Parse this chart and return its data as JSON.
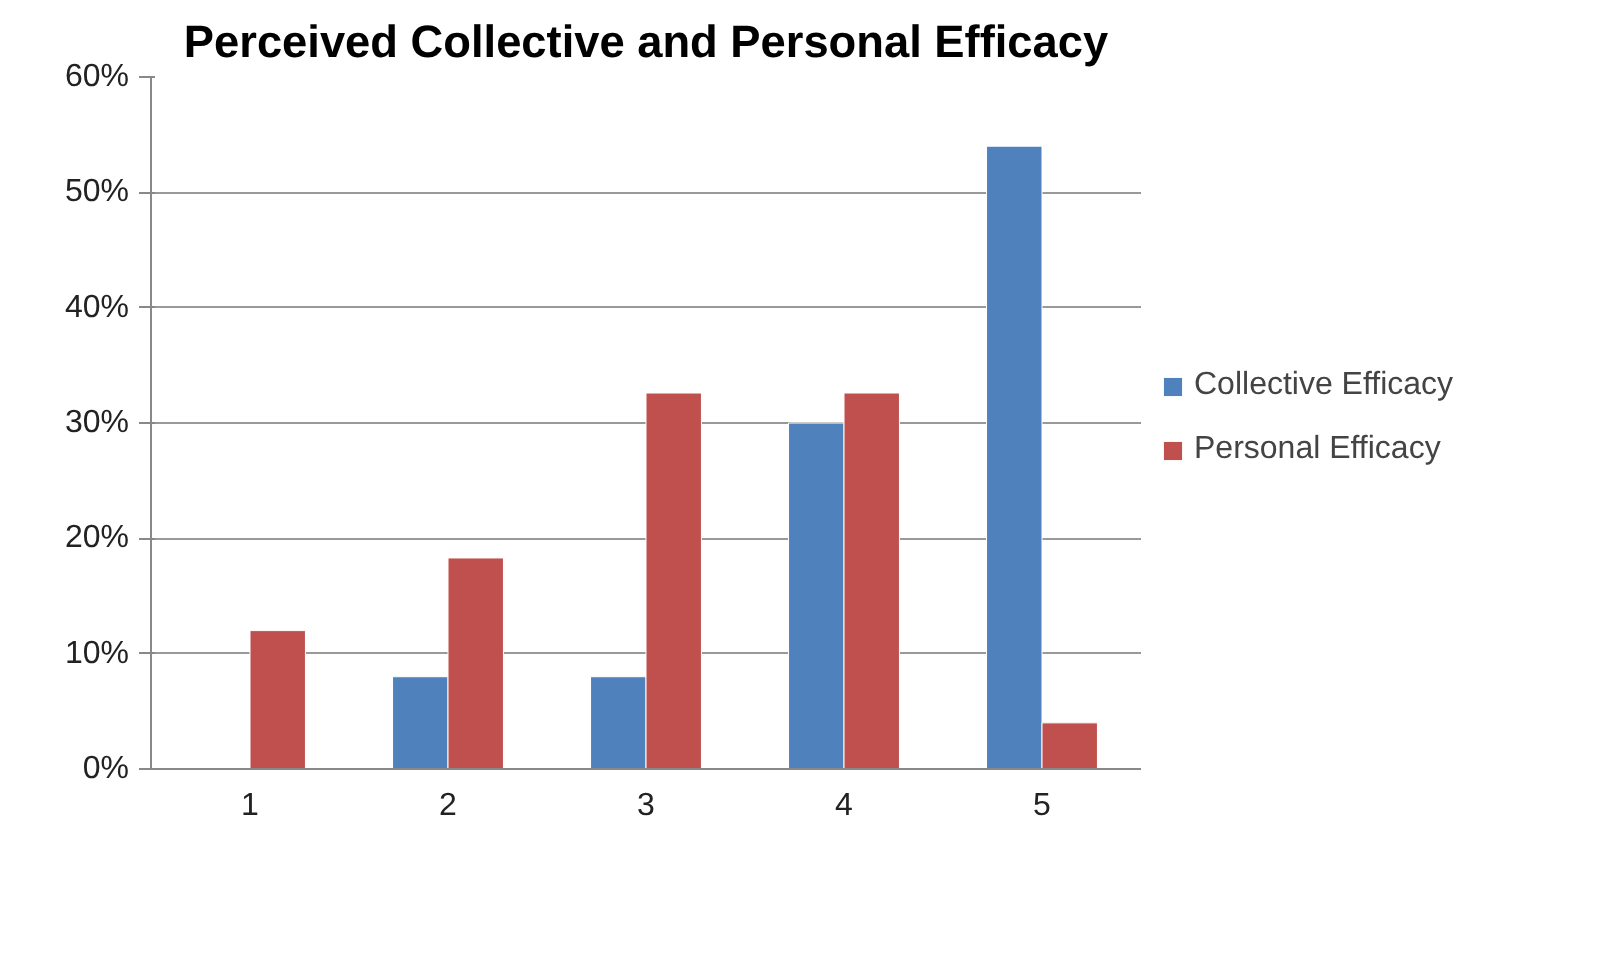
{
  "chart_data": {
    "type": "bar",
    "title": "Perceived Collective and Personal Efficacy",
    "categories": [
      "1",
      "2",
      "3",
      "4",
      "5"
    ],
    "series": [
      {
        "name": "Collective Efficacy",
        "color": "#4f81bd",
        "values": [
          null,
          8,
          8,
          30,
          54
        ]
      },
      {
        "name": "Personal Efficacy",
        "color": "#c0504d",
        "values": [
          12,
          18.3,
          32.6,
          32.6,
          4
        ]
      }
    ],
    "ylim": [
      0,
      60
    ],
    "yticks": [
      {
        "value": 0,
        "label": "0%"
      },
      {
        "value": 10,
        "label": "10%"
      },
      {
        "value": 20,
        "label": "20%"
      },
      {
        "value": 30,
        "label": "30%"
      },
      {
        "value": 40,
        "label": "40%"
      },
      {
        "value": 50,
        "label": "50%"
      },
      {
        "value": 60,
        "label": "60%"
      }
    ],
    "grid": "y",
    "legend": "right"
  }
}
